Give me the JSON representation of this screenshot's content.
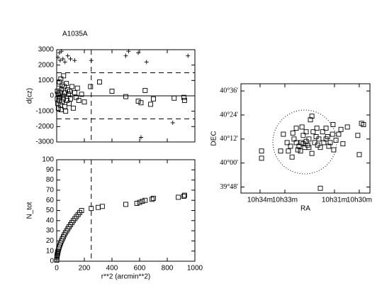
{
  "chart_data": [
    {
      "type": "scatter",
      "title": "A1035A",
      "ylabel": "d(cz)",
      "xlim": [
        0,
        1000
      ],
      "ylim": [
        -3000,
        3000
      ],
      "xticks": [
        0,
        200,
        400,
        600,
        800,
        1000
      ],
      "xtick_labels": false,
      "yticks": [
        -3000,
        -2000,
        -1000,
        0,
        1000,
        2000,
        3000
      ],
      "solid_hlines": [
        0
      ],
      "dashed_hlines": [
        1500,
        -1500
      ],
      "dashed_vlines": [
        250
      ],
      "series": [
        {
          "marker": "square",
          "color": "#000000",
          "x": [
            5,
            5,
            8,
            10,
            12,
            15,
            18,
            20,
            22,
            25,
            28,
            30,
            32,
            35,
            38,
            40,
            45,
            48,
            50,
            55,
            58,
            60,
            65,
            70,
            75,
            80,
            85,
            90,
            95,
            100,
            110,
            120,
            130,
            140,
            150,
            160,
            180,
            200,
            245,
            310,
            400,
            500,
            590,
            610,
            640,
            680,
            700,
            850,
            920,
            925
          ],
          "values": [
            -200,
            300,
            -500,
            100,
            -800,
            500,
            -300,
            900,
            -100,
            200,
            -600,
            1100,
            -900,
            400,
            -400,
            700,
            0,
            -200,
            1300,
            600,
            -700,
            200,
            -1000,
            800,
            -300,
            400,
            100,
            -500,
            300,
            -200,
            600,
            -800,
            200,
            -100,
            500,
            -300,
            100,
            -400,
            600,
            900,
            300,
            -50,
            -350,
            -450,
            350,
            -550,
            -200,
            -150,
            -100,
            -300
          ]
        },
        {
          "marker": "plus",
          "color": "#000000",
          "x": [
            10,
            20,
            25,
            35,
            45,
            60,
            80,
            100,
            130,
            250,
            500,
            520,
            590,
            650,
            840,
            610,
            950
          ],
          "values": [
            2500,
            2800,
            2300,
            2900,
            2400,
            2200,
            2600,
            2400,
            2300,
            2300,
            2600,
            2900,
            2800,
            2200,
            -1750,
            -2700,
            2600
          ]
        }
      ]
    },
    {
      "type": "scatter",
      "ylabel": "N_tot",
      "xlabel": "r**2 (arcmin**2)",
      "xlim": [
        0,
        1000
      ],
      "ylim": [
        0,
        100
      ],
      "xticks": [
        0,
        200,
        400,
        600,
        800,
        1000
      ],
      "xtick_labels": true,
      "yticks": [
        0,
        10,
        20,
        30,
        40,
        50,
        60,
        70,
        80,
        90,
        100
      ],
      "dashed_vlines": [
        250
      ],
      "series": [
        {
          "marker": "square",
          "color": "#000000",
          "x": [
            0,
            1,
            2,
            3,
            4,
            5,
            7,
            8,
            10,
            14,
            18,
            23,
            29,
            35,
            41,
            48,
            55,
            63,
            72,
            81,
            90,
            100,
            110,
            120,
            132,
            143,
            155,
            167,
            180,
            250,
            300,
            330,
            500,
            580,
            600,
            620,
            640,
            690,
            700,
            880,
            920,
            925
          ],
          "values": [
            1,
            2,
            4,
            5,
            6,
            7,
            8,
            9,
            10,
            12,
            14,
            16,
            18,
            20,
            22,
            24,
            26,
            28,
            30,
            32,
            34,
            36,
            38,
            40,
            42,
            44,
            46,
            48,
            50,
            52,
            53,
            54,
            56,
            57,
            58,
            59,
            60,
            61,
            62,
            63,
            64,
            65
          ]
        }
      ]
    },
    {
      "type": "scatter",
      "ylabel": "DEC",
      "xlabel": "RA",
      "xlim": [
        34.77,
        29.57
      ],
      "ylim": [
        39.75,
        40.66
      ],
      "xticks": [
        {
          "value": 34,
          "label": "10h34m"
        },
        {
          "value": 33,
          "label": "10h33m"
        },
        {
          "value": 31,
          "label": "10h31m"
        },
        {
          "value": 30,
          "label": "10h30m"
        }
      ],
      "xtick_labels": true,
      "yticks": [
        {
          "value": 40.6,
          "label": "40°36'"
        },
        {
          "value": 40.4,
          "label": "40°24'"
        },
        {
          "value": 40.2,
          "label": "40°12'"
        },
        {
          "value": 40.0,
          "label": "40°00'"
        },
        {
          "value": 39.8,
          "label": "39°48'"
        }
      ],
      "series": [
        {
          "marker": "square",
          "color": "#000000",
          "x": [
            33.94,
            33.94,
            33.17,
            33.06,
            32.91,
            32.86,
            32.77,
            32.68,
            32.63,
            32.54,
            32.48,
            32.43,
            32.34,
            32.26,
            32.2,
            32.14,
            32.08,
            32.03,
            31.97,
            31.91,
            31.86,
            31.8,
            31.74,
            31.68,
            31.63,
            31.57,
            31.48,
            31.43,
            31.34,
            31.28,
            31.23,
            31.17,
            31.08,
            31.03,
            30.94,
            30.83,
            30.74,
            30.48,
            30.06,
            30.0,
            29.91,
            29.83,
            31.57,
            32.31,
            32.14,
            32.37,
            32.03,
            31.91,
            32.26,
            32.54,
            32.71,
            31.71,
            31.34,
            31.06,
            30.66
          ],
          "values": [
            40.1,
            40.04,
            40.1,
            40.24,
            40.17,
            40.1,
            40.14,
            40.25,
            40.2,
            40.17,
            40.11,
            40.14,
            40.17,
            40.16,
            40.13,
            40.18,
            40.15,
            40.2,
            40.36,
            40.39,
            40.26,
            40.17,
            40.22,
            40.15,
            40.2,
            40.13,
            40.26,
            40.17,
            40.2,
            40.22,
            40.14,
            40.17,
            40.24,
            40.11,
            40.19,
            40.24,
            40.28,
            40.3,
            40.23,
            40.07,
            40.33,
            40.32,
            39.79,
            40.3,
            40.26,
            40.1,
            40.13,
            40.08,
            40.23,
            40.29,
            40.05,
            40.29,
            40.29,
            40.32,
            40.16
          ]
        }
      ]
    }
  ]
}
